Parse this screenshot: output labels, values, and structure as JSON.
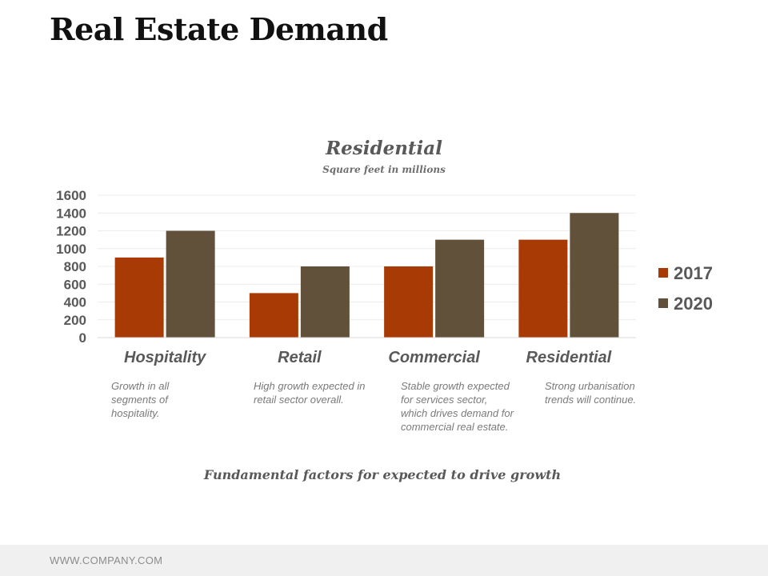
{
  "page": {
    "title": "Real Estate Demand",
    "footer": "WWW.COMPANY.COM"
  },
  "colors": {
    "series_2017": "#a83a06",
    "series_2020": "#62513a"
  },
  "chart_data": {
    "type": "bar",
    "title": "Residential",
    "subtitle": "Square feet in millions",
    "categories": [
      "Hospitality",
      "Retail",
      "Commercial",
      "Residential"
    ],
    "series": [
      {
        "name": "2017",
        "values": [
          900,
          500,
          800,
          1100
        ]
      },
      {
        "name": "2020",
        "values": [
          1200,
          800,
          1100,
          1400
        ]
      }
    ],
    "yticks": [
      "0",
      "200",
      "400",
      "600",
      "800",
      "1000",
      "1200",
      "1400",
      "1600"
    ],
    "ylim": [
      0,
      1600
    ],
    "grid": true,
    "legend": "right",
    "caption": "Fundamental factors for expected to drive growth"
  },
  "notes": [
    "Growth in all segments of hospitality.",
    "High growth expected in retail sector overall.",
    "Stable growth expected for services sector, which drives demand for commercial real estate.",
    "Strong urbanisation trends will continue."
  ]
}
